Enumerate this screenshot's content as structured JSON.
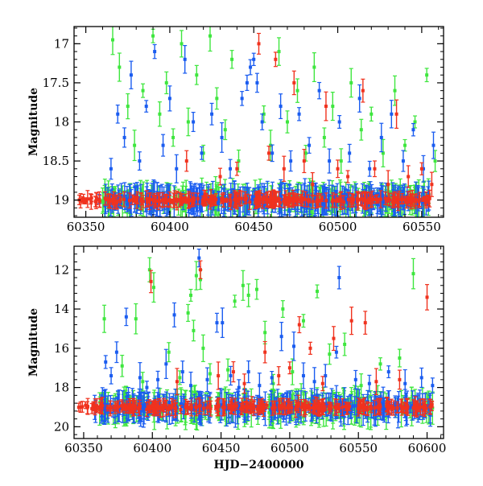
{
  "colors": {
    "green": "#3ee63e",
    "blue": "#1a5cf0",
    "red": "#f0321e",
    "frame": "#000000"
  },
  "chart_data": [
    {
      "type": "scatter",
      "title": "",
      "xlabel": "",
      "ylabel": "Magnitude",
      "xlim": [
        60343,
        60563
      ],
      "ylim": [
        19.22,
        16.78
      ],
      "y_inverted": true,
      "grid": false,
      "legend": "none",
      "x_ticks": [
        60350,
        60400,
        60450,
        60500,
        60550
      ],
      "x_tick_labels": [
        "60350",
        "60400",
        "60450",
        "60500",
        "60550"
      ],
      "y_ticks": [
        17,
        17.5,
        18,
        18.5,
        19
      ],
      "y_tick_labels": [
        "17",
        "17.5",
        "18",
        "18.5",
        "19"
      ],
      "baseline_magnitude": 19.0,
      "series": [
        {
          "color": "green",
          "points": [
            [
              60366,
              16.95
            ],
            [
              60370,
              17.3
            ],
            [
              60375,
              17.8
            ],
            [
              60379,
              18.3
            ],
            [
              60384,
              17.6
            ],
            [
              60390,
              16.9
            ],
            [
              60394,
              17.9
            ],
            [
              60398,
              17.5
            ],
            [
              60402,
              18.2
            ],
            [
              60407,
              17.0
            ],
            [
              60411,
              18.0
            ],
            [
              60416,
              17.4
            ],
            [
              60420,
              18.4
            ],
            [
              60424,
              16.9
            ],
            [
              60428,
              17.7
            ],
            [
              60433,
              18.1
            ],
            [
              60437,
              17.2
            ],
            [
              60441,
              18.5
            ],
            [
              60456,
              17.9
            ],
            [
              60460,
              18.3
            ],
            [
              60465,
              17.1
            ],
            [
              60470,
              18.0
            ],
            [
              60476,
              17.6
            ],
            [
              60481,
              18.4
            ],
            [
              60486,
              17.3
            ],
            [
              60492,
              18.2
            ],
            [
              60497,
              17.8
            ],
            [
              60502,
              18.5
            ],
            [
              60508,
              17.5
            ],
            [
              60514,
              18.1
            ],
            [
              60520,
              17.9
            ],
            [
              60527,
              18.4
            ],
            [
              60534,
              17.6
            ],
            [
              60540,
              18.3
            ],
            [
              60546,
              18.0
            ],
            [
              60553,
              17.4
            ],
            [
              60558,
              18.5
            ]
          ]
        },
        {
          "color": "blue",
          "points": [
            [
              60365,
              18.6
            ],
            [
              60369,
              17.9
            ],
            [
              60373,
              18.2
            ],
            [
              60377,
              17.4
            ],
            [
              60382,
              18.5
            ],
            [
              60386,
              17.8
            ],
            [
              60391,
              17.1
            ],
            [
              60396,
              18.3
            ],
            [
              60400,
              17.7
            ],
            [
              60404,
              18.6
            ],
            [
              60409,
              17.2
            ],
            [
              60414,
              18.0
            ],
            [
              60419,
              18.4
            ],
            [
              60425,
              17.9
            ],
            [
              60431,
              18.2
            ],
            [
              60436,
              18.6
            ],
            [
              60443,
              17.7
            ],
            [
              60446,
              17.5
            ],
            [
              60448,
              17.3
            ],
            [
              60450,
              17.2
            ],
            [
              60452,
              17.5
            ],
            [
              60455,
              18.0
            ],
            [
              60461,
              18.4
            ],
            [
              60466,
              17.8
            ],
            [
              60472,
              18.5
            ],
            [
              60477,
              17.9
            ],
            [
              60483,
              18.3
            ],
            [
              60489,
              17.6
            ],
            [
              60495,
              18.5
            ],
            [
              60501,
              18.0
            ],
            [
              60507,
              18.4
            ],
            [
              60513,
              17.7
            ],
            [
              60519,
              18.6
            ],
            [
              60526,
              18.2
            ],
            [
              60532,
              17.9
            ],
            [
              60539,
              18.5
            ],
            [
              60545,
              18.1
            ],
            [
              60551,
              18.6
            ],
            [
              60557,
              18.3
            ]
          ]
        },
        {
          "color": "red",
          "points": [
            [
              60410,
              18.5
            ],
            [
              60430,
              18.7
            ],
            [
              60440,
              18.6
            ],
            [
              60453,
              17.0
            ],
            [
              60459,
              18.4
            ],
            [
              60463,
              17.2
            ],
            [
              60468,
              18.6
            ],
            [
              60474,
              17.5
            ],
            [
              60480,
              18.5
            ],
            [
              60485,
              18.8
            ],
            [
              60493,
              17.8
            ],
            [
              60500,
              18.6
            ],
            [
              60506,
              18.7
            ],
            [
              60515,
              17.6
            ],
            [
              60522,
              18.6
            ],
            [
              60530,
              18.8
            ],
            [
              60535,
              17.9
            ],
            [
              60542,
              18.7
            ],
            [
              60550,
              18.6
            ],
            [
              60556,
              18.8
            ]
          ]
        }
      ]
    },
    {
      "type": "scatter",
      "title": "",
      "xlabel": "HJD−2400000",
      "ylabel": "Magnitude",
      "xlim": [
        60343,
        60612
      ],
      "ylim": [
        20.6,
        10.8
      ],
      "y_inverted": true,
      "grid": false,
      "legend": "none",
      "x_ticks": [
        60350,
        60400,
        60450,
        60500,
        60550,
        60600
      ],
      "x_tick_labels": [
        "60350",
        "60400",
        "60450",
        "60500",
        "60550",
        "60600"
      ],
      "y_ticks": [
        12,
        14,
        16,
        18,
        20
      ],
      "y_tick_labels": [
        "12",
        "14",
        "16",
        "18",
        "20"
      ],
      "baseline_magnitude": 19.0,
      "series": [
        {
          "color": "green",
          "points": [
            [
              60365,
              14.5
            ],
            [
              60378,
              16.9
            ],
            [
              60388,
              14.5
            ],
            [
              60393,
              17.7
            ],
            [
              60398,
              12.0
            ],
            [
              60401,
              12.9
            ],
            [
              60412,
              16.2
            ],
            [
              60420,
              17.5
            ],
            [
              60426,
              14.2
            ],
            [
              60428,
              13.3
            ],
            [
              60430,
              15.1
            ],
            [
              60432,
              12.3
            ],
            [
              60435,
              12.5
            ],
            [
              60437,
              16.0
            ],
            [
              60442,
              17.3
            ],
            [
              60455,
              17.1
            ],
            [
              60460,
              13.6
            ],
            [
              60466,
              12.8
            ],
            [
              60470,
              13.3
            ],
            [
              60476,
              13.0
            ],
            [
              60482,
              15.2
            ],
            [
              60488,
              17.8
            ],
            [
              60495,
              14.0
            ],
            [
              60502,
              17.2
            ],
            [
              60510,
              14.6
            ],
            [
              60520,
              13.1
            ],
            [
              60529,
              16.3
            ],
            [
              60540,
              15.8
            ],
            [
              60552,
              17.9
            ],
            [
              60566,
              16.8
            ],
            [
              60580,
              16.5
            ],
            [
              60590,
              12.2
            ]
          ]
        },
        {
          "color": "blue",
          "points": [
            [
              60366,
              16.7
            ],
            [
              60370,
              17.4
            ],
            [
              60374,
              16.2
            ],
            [
              60381,
              14.4
            ],
            [
              60391,
              17.5
            ],
            [
              60396,
              18.0
            ],
            [
              60404,
              17.6
            ],
            [
              60410,
              16.8
            ],
            [
              60416,
              14.3
            ],
            [
              60422,
              17.2
            ],
            [
              60428,
              17.9
            ],
            [
              60434,
              11.4
            ],
            [
              60440,
              17.6
            ],
            [
              60447,
              14.7
            ],
            [
              60451,
              14.7
            ],
            [
              60457,
              17.4
            ],
            [
              60463,
              18.0
            ],
            [
              60470,
              17.2
            ],
            [
              60478,
              17.9
            ],
            [
              60487,
              17.5
            ],
            [
              60494,
              15.4
            ],
            [
              60503,
              15.9
            ],
            [
              60510,
              17.4
            ],
            [
              60518,
              17.7
            ],
            [
              60526,
              17.4
            ],
            [
              60534,
              16.2
            ],
            [
              60536,
              12.4
            ],
            [
              60548,
              17.6
            ],
            [
              60558,
              17.8
            ],
            [
              60572,
              17.2
            ],
            [
              60584,
              17.8
            ],
            [
              60596,
              17.5
            ],
            [
              60604,
              17.9
            ]
          ]
        },
        {
          "color": "red",
          "points": [
            [
              60399,
              12.6
            ],
            [
              60418,
              17.7
            ],
            [
              60435,
              12.0
            ],
            [
              60448,
              17.4
            ],
            [
              60459,
              17.2
            ],
            [
              60467,
              17.8
            ],
            [
              60482,
              16.2
            ],
            [
              60492,
              17.4
            ],
            [
              60500,
              17.0
            ],
            [
              60507,
              14.8
            ],
            [
              60515,
              16.0
            ],
            [
              60524,
              17.8
            ],
            [
              60532,
              15.5
            ],
            [
              60545,
              14.6
            ],
            [
              60555,
              14.7
            ],
            [
              60563,
              17.7
            ],
            [
              60580,
              17.6
            ],
            [
              60600,
              13.4
            ]
          ]
        }
      ]
    }
  ]
}
